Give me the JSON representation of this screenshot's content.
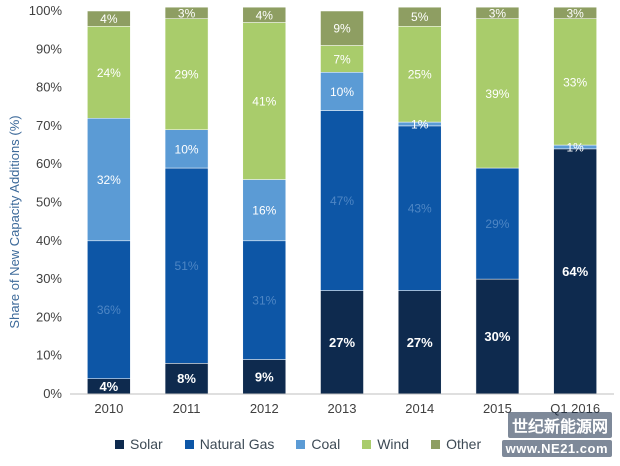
{
  "chart_data": {
    "type": "bar",
    "stacked": true,
    "title": "",
    "xlabel": "",
    "ylabel": "Share of New Capacity Additions (%)",
    "ylim": [
      0,
      100
    ],
    "yticks": [
      "0%",
      "10%",
      "20%",
      "30%",
      "40%",
      "50%",
      "60%",
      "70%",
      "80%",
      "90%",
      "100%"
    ],
    "categories": [
      "2010",
      "2011",
      "2012",
      "2013",
      "2014",
      "2015",
      "Q1 2016"
    ],
    "series": [
      {
        "name": "Solar",
        "color": "#0e2a4e",
        "values": [
          4,
          8,
          9,
          27,
          27,
          30,
          64
        ],
        "labels": [
          "4%",
          "8%",
          "9%",
          "27%",
          "27%",
          "30%",
          "64%"
        ]
      },
      {
        "name": "Natural Gas",
        "color": "#0d56a6",
        "values": [
          36,
          51,
          31,
          47,
          43,
          29,
          0
        ],
        "labels": [
          "36%",
          "51%",
          "31%",
          "47%",
          "43%",
          "29%",
          ""
        ]
      },
      {
        "name": "Coal",
        "color": "#5b9bd5",
        "values": [
          32,
          10,
          16,
          10,
          1,
          0,
          1
        ],
        "labels": [
          "32%",
          "10%",
          "16%",
          "10%",
          "1%",
          "",
          "1%"
        ]
      },
      {
        "name": "Wind",
        "color": "#a9cc6b",
        "values": [
          24,
          29,
          41,
          7,
          25,
          39,
          33
        ],
        "labels": [
          "24%",
          "29%",
          "41%",
          "7%",
          "25%",
          "39%",
          "33%"
        ]
      },
      {
        "name": "Other",
        "color": "#8e9e62",
        "values": [
          4,
          3,
          4,
          9,
          5,
          3,
          3
        ],
        "labels": [
          "4%",
          "3%",
          "4%",
          "9%",
          "5%",
          "3%",
          "3%"
        ]
      }
    ],
    "legend_position": "bottom",
    "grid": false
  },
  "watermark": {
    "site_name": "世纪新能源网",
    "url": "www.NE21.com"
  }
}
